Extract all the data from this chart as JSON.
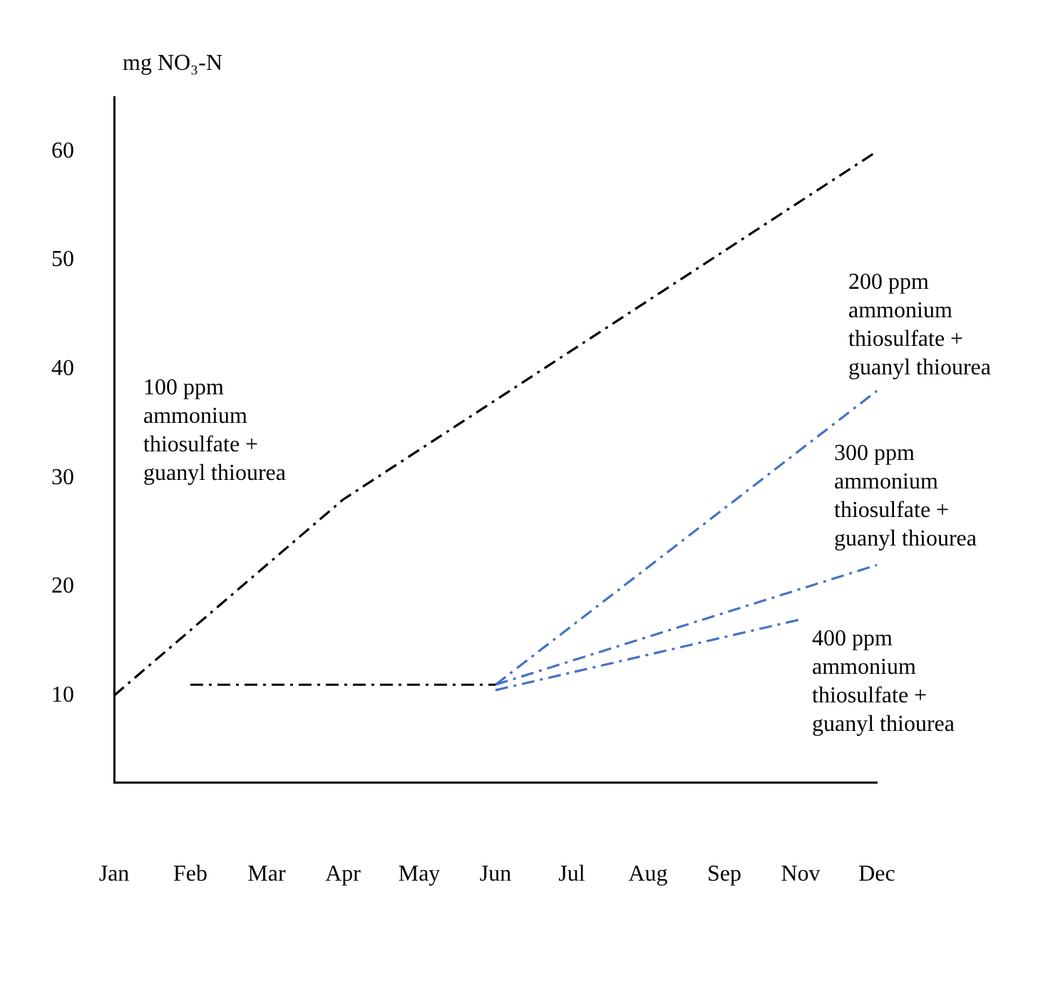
{
  "chart_data": {
    "type": "line",
    "ylabel": "mg NO₃-N",
    "categories": [
      "Jan",
      "Feb",
      "Mar",
      "Apr",
      "May",
      "Jun",
      "Jul",
      "Aug",
      "Sep",
      "Nov",
      "Dec"
    ],
    "ylim": [
      2,
      65
    ],
    "yticks": [
      10,
      20,
      30,
      40,
      50,
      60
    ],
    "grid": false,
    "legend": false,
    "marker": "none",
    "series": [
      {
        "name": "100 ppm ammonium thiosulfate + guanyl thiourea",
        "color": "#000000",
        "line_style": "dashed",
        "values": [
          10,
          null,
          null,
          28,
          null,
          null,
          null,
          null,
          null,
          null,
          60
        ]
      },
      {
        "color": "#000000",
        "line_style": "dashed",
        "values": [
          null,
          11,
          null,
          null,
          null,
          11,
          null,
          null,
          null,
          null,
          null
        ]
      },
      {
        "name": "200 ppm ammonium thiosulfate + guanyl thiourea",
        "color": "#4472c4",
        "line_style": "dashed",
        "values": [
          null,
          null,
          null,
          null,
          null,
          11,
          null,
          null,
          null,
          null,
          38
        ]
      },
      {
        "name": "300 ppm ammonium thiosulfate + guanyl thiourea",
        "color": "#4472c4",
        "line_style": "dashed",
        "values": [
          null,
          null,
          null,
          null,
          null,
          11,
          null,
          null,
          null,
          null,
          22
        ]
      },
      {
        "name": "400 ppm ammonium thiosulfate + guanyl thiourea",
        "color": "#4472c4",
        "line_style": "dashed",
        "values": [
          null,
          null,
          null,
          null,
          null,
          10.5,
          null,
          null,
          null,
          17,
          null
        ]
      }
    ]
  }
}
